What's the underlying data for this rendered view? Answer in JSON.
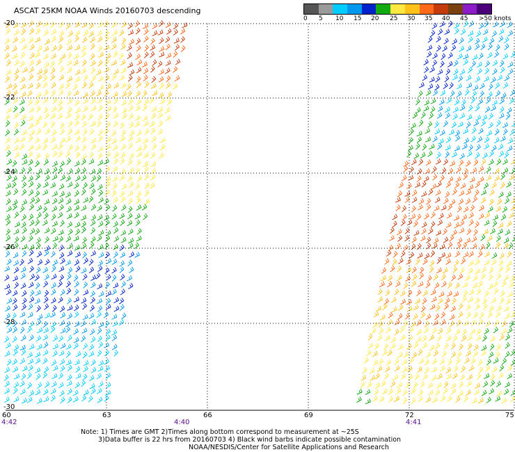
{
  "title": "ASCAT 25KM NOAA Winds 20160703 descending",
  "legend": {
    "labels": [
      "0",
      "5",
      "10",
      "15",
      "20",
      "25",
      "30",
      "35",
      "40",
      "45",
      ">50 knots"
    ],
    "colors": [
      "#555555",
      "#9a9a9a",
      "#00ccff",
      "#0099ee",
      "#0022cc",
      "#11aa11",
      "#ffe840",
      "#ffc21a",
      "#ff6a1a",
      "#c43c0a",
      "#7a4010",
      "#8c1cc8",
      "#4a0078"
    ]
  },
  "map": {
    "lat_labels": [
      "-20",
      "-22",
      "-24",
      "-26",
      "-28",
      "-30"
    ],
    "lon_labels": [
      "60",
      "63",
      "66",
      "69",
      "72",
      "75"
    ],
    "time_labels": [
      "4:42",
      "4:40",
      "4:41"
    ]
  },
  "note": {
    "line1": "Note: 1) Times are GMT 2)Times along bottom correspond to measurement at ~25S",
    "line2": "3)Data buffer is 22 hrs from 20160703 4) Black wind barbs indicate possible contamination",
    "line3": "NOAA/NESDIS/Center for Satellite Applications and Research"
  }
}
